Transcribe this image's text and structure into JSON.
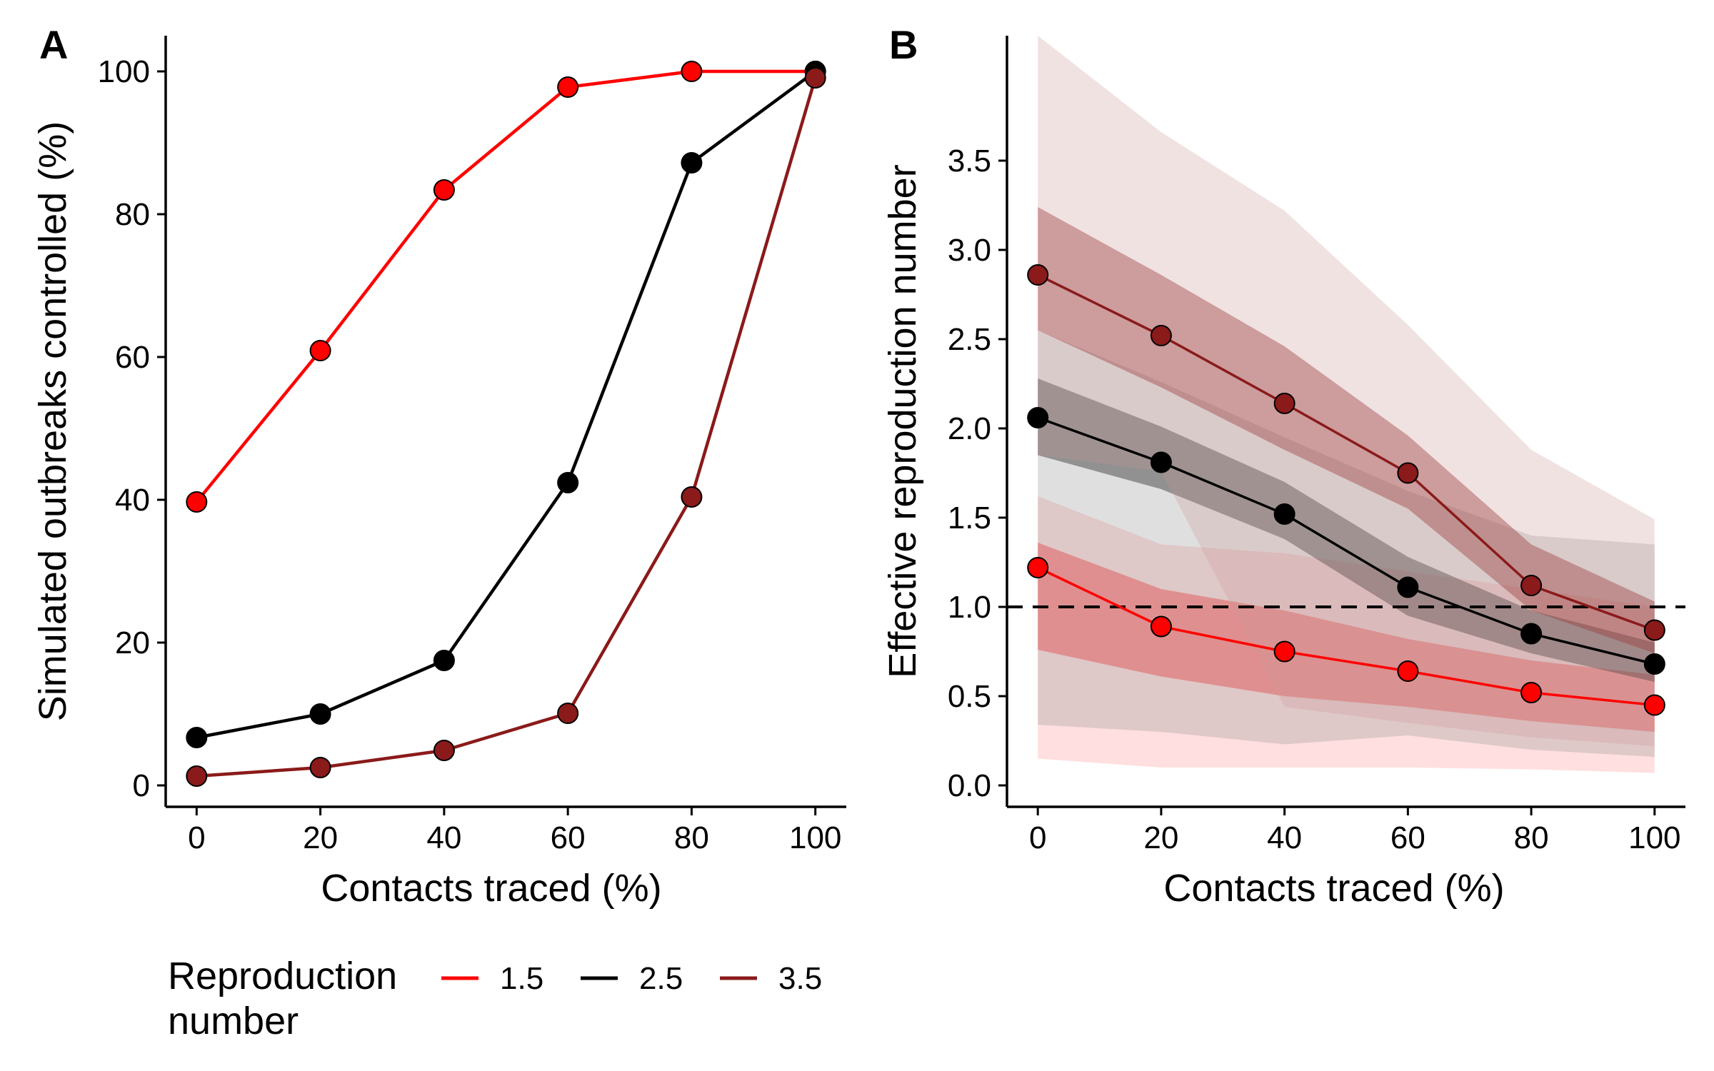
{
  "chart_data": [
    {
      "panel_label": "A",
      "type": "line",
      "xlabel": "Contacts traced (%)",
      "ylabel": "Simulated outbreaks controlled (%)",
      "x": [
        0,
        20,
        40,
        60,
        80,
        100
      ],
      "xlim": [
        -5,
        105
      ],
      "ylim": [
        -3,
        105
      ],
      "x_ticks": [
        "0",
        "20",
        "40",
        "60",
        "80",
        "100"
      ],
      "y_ticks": [
        "0",
        "20",
        "40",
        "60",
        "80",
        "100"
      ],
      "grid": false,
      "series": [
        {
          "name": "1.5",
          "color": "#ff0000",
          "values": [
            39.7,
            60.9,
            83.4,
            97.8,
            100,
            100
          ]
        },
        {
          "name": "2.5",
          "color": "#000000",
          "values": [
            6.7,
            10.0,
            17.5,
            42.4,
            87.2,
            100
          ]
        },
        {
          "name": "3.5",
          "color": "#8b1a1a",
          "values": [
            1.3,
            2.5,
            4.9,
            10.1,
            40.4,
            99.1
          ]
        }
      ]
    },
    {
      "panel_label": "B",
      "type": "line",
      "xlabel": "Contacts traced (%)",
      "ylabel": "Effective reproduction number",
      "x": [
        0,
        20,
        40,
        60,
        80,
        100
      ],
      "xlim": [
        -5,
        105
      ],
      "ylim": [
        -0.12,
        4.2
      ],
      "x_ticks": [
        "0",
        "20",
        "40",
        "60",
        "80",
        "100"
      ],
      "y_ticks": [
        "0.0",
        "0.5",
        "1.0",
        "1.5",
        "2.0",
        "2.5",
        "3.0",
        "3.5"
      ],
      "grid": false,
      "reference_line": {
        "y": 1.0,
        "style": "dashed"
      },
      "series": [
        {
          "name": "1.5",
          "color": "#ff0000",
          "values": [
            1.22,
            0.89,
            0.75,
            0.64,
            0.52,
            0.45
          ],
          "band_inner": {
            "lower": [
              0.76,
              0.61,
              0.5,
              0.44,
              0.36,
              0.3
            ],
            "upper": [
              1.36,
              1.1,
              0.98,
              0.82,
              0.7,
              0.62
            ]
          },
          "band_outer": {
            "lower": [
              0.15,
              0.1,
              0.1,
              0.1,
              0.09,
              0.07
            ],
            "upper": [
              1.62,
              1.35,
              1.3,
              1.2,
              1.1,
              1.0
            ]
          }
        },
        {
          "name": "2.5",
          "color": "#000000",
          "values": [
            2.06,
            1.81,
            1.52,
            1.11,
            0.85,
            0.68
          ],
          "band_inner": {
            "lower": [
              1.85,
              1.66,
              1.38,
              0.95,
              0.74,
              0.58
            ],
            "upper": [
              2.28,
              2.01,
              1.7,
              1.28,
              0.98,
              0.8
            ]
          },
          "band_outer": {
            "lower": [
              0.34,
              0.3,
              0.23,
              0.28,
              0.2,
              0.16
            ],
            "upper": [
              2.55,
              2.26,
              1.95,
              1.65,
              1.4,
              1.35
            ]
          }
        },
        {
          "name": "3.5",
          "color": "#8b1a1a",
          "values": [
            2.86,
            2.52,
            2.14,
            1.75,
            1.12,
            0.87
          ],
          "band_inner": {
            "lower": [
              2.55,
              2.23,
              1.88,
              1.55,
              0.98,
              0.74
            ],
            "upper": [
              3.24,
              2.86,
              2.46,
              1.96,
              1.35,
              1.03
            ]
          },
          "band_outer": {
            "lower": [
              1.85,
              1.76,
              0.44,
              0.35,
              0.27,
              0.22
            ],
            "upper": [
              4.2,
              3.66,
              3.22,
              2.58,
              1.88,
              1.49
            ]
          }
        }
      ]
    }
  ],
  "legend": {
    "title_line1": "Reproduction",
    "title_line2": "number",
    "placement": "bottom-left",
    "items": [
      {
        "label": "1.5",
        "color": "#ff0000"
      },
      {
        "label": "2.5",
        "color": "#000000"
      },
      {
        "label": "3.5",
        "color": "#8b1a1a"
      }
    ]
  }
}
